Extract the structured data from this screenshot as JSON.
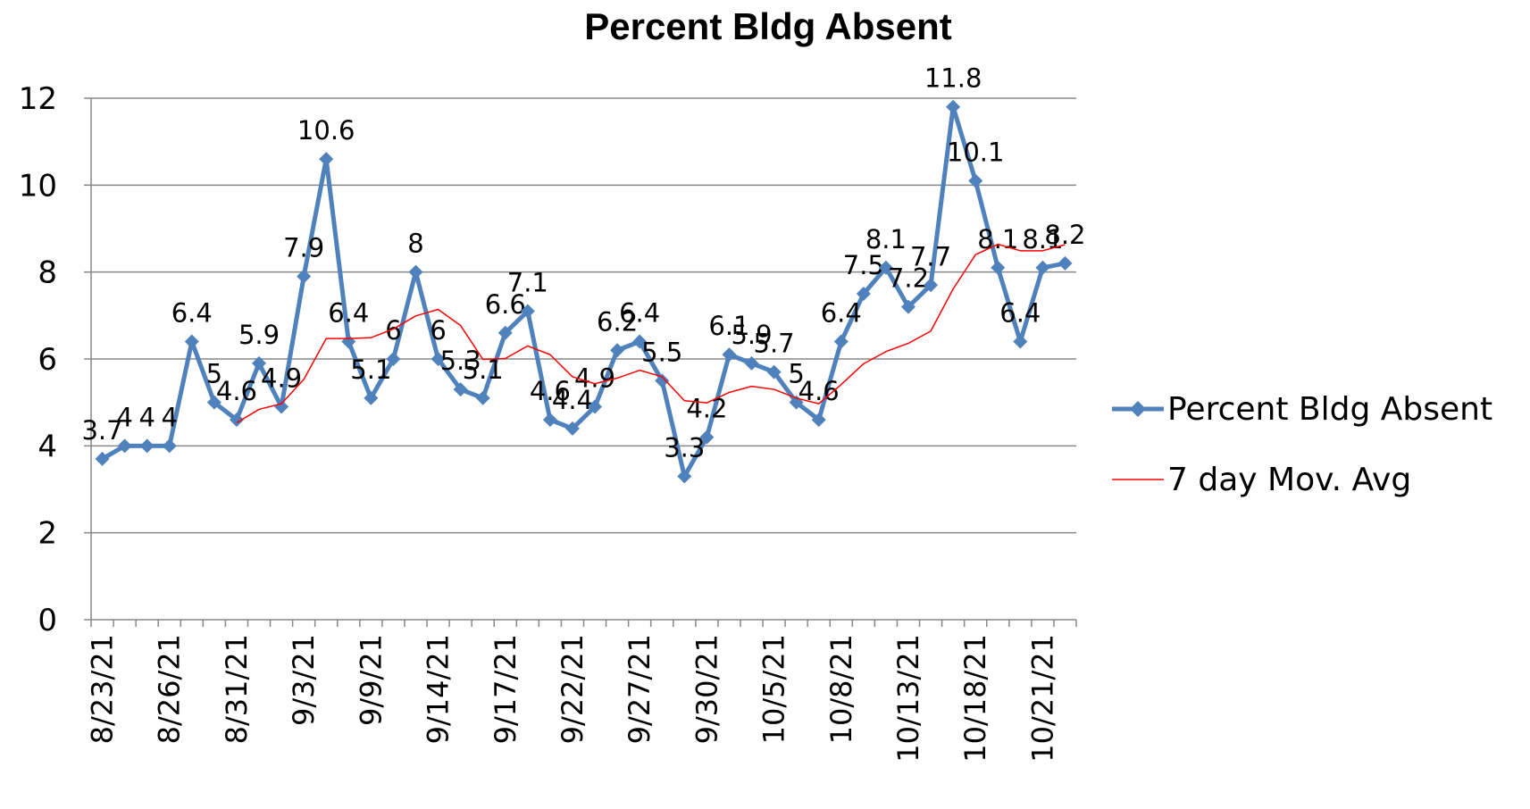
{
  "chart_data": {
    "type": "line",
    "title": "Percent Bldg Absent",
    "categories": [
      "8/23/21",
      null,
      null,
      "8/26/21",
      null,
      null,
      "8/31/21",
      null,
      null,
      "9/3/21",
      null,
      null,
      "9/9/21",
      null,
      null,
      "9/14/21",
      null,
      null,
      "9/17/21",
      null,
      null,
      "9/22/21",
      null,
      null,
      "9/27/21",
      null,
      null,
      "9/30/21",
      null,
      null,
      "10/5/21",
      null,
      null,
      "10/8/21",
      null,
      null,
      "10/13/21",
      null,
      null,
      "10/18/21",
      null,
      null,
      "10/21/21",
      null
    ],
    "series": [
      {
        "name": "Percent Bldg Absent",
        "color": "#4f81bd",
        "marker": "diamond",
        "data_labels": true,
        "values": [
          3.7,
          4,
          4,
          4,
          6.4,
          5,
          4.6,
          5.9,
          4.9,
          7.9,
          10.6,
          6.4,
          5.1,
          6,
          8,
          6,
          5.3,
          5.1,
          6.6,
          7.1,
          4.6,
          4.4,
          4.9,
          6.2,
          6.4,
          5.5,
          3.3,
          4.2,
          6.1,
          5.9,
          5.7,
          5,
          4.6,
          6.4,
          7.5,
          8.1,
          7.2,
          7.7,
          11.8,
          10.1,
          8.1,
          6.4,
          8.1,
          8.2
        ]
      },
      {
        "name": "7 day Mov. Avg",
        "color": "#ff0000",
        "marker": "none",
        "data_labels": false,
        "values": [
          null,
          null,
          null,
          null,
          null,
          null,
          4.53,
          4.84,
          4.97,
          5.53,
          6.47,
          6.47,
          6.49,
          6.69,
          6.99,
          7.14,
          6.77,
          5.99,
          6.01,
          6.3,
          6.1,
          5.59,
          5.43,
          5.56,
          5.74,
          5.59,
          5.04,
          4.99,
          5.23,
          5.37,
          5.3,
          5.1,
          4.97,
          5.41,
          5.89,
          6.17,
          6.36,
          6.64,
          7.61,
          8.4,
          8.64,
          8.49,
          8.49,
          8.63
        ]
      }
    ],
    "ylim": [
      0,
      12
    ],
    "yticks": [
      0,
      2,
      4,
      6,
      8,
      10,
      12
    ],
    "grid": true,
    "legend": "right"
  }
}
